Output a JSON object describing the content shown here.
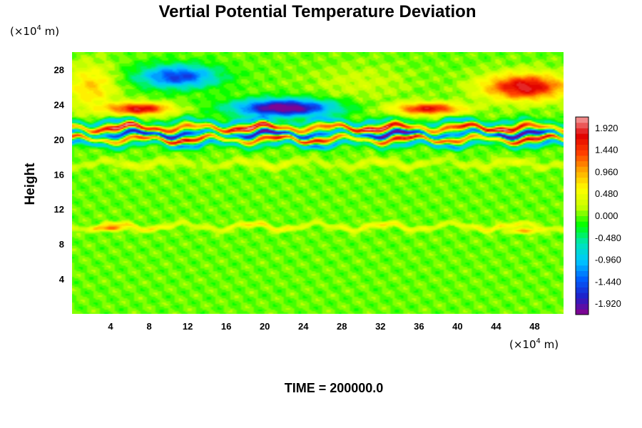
{
  "chart_data": {
    "type": "heatmap",
    "title": "Vertial Potential Temperature Deviation",
    "ylabel": "Height",
    "xlabel": "",
    "x_unit": {
      "base": "(×10",
      "exp": "4",
      "tail": " m)"
    },
    "y_unit": {
      "base": "(×10",
      "exp": "4",
      "tail": " m)"
    },
    "xlim": [
      0,
      51
    ],
    "ylim": [
      0,
      30
    ],
    "x_ticks": [
      "4",
      "8",
      "12",
      "16",
      "20",
      "24",
      "28",
      "32",
      "36",
      "40",
      "44",
      "48"
    ],
    "y_ticks": [
      "4",
      "8",
      "12",
      "16",
      "20",
      "24",
      "28"
    ],
    "colorbar": {
      "labels": [
        "1.920",
        "1.440",
        "0.960",
        "0.480",
        "0.000",
        "-0.480",
        "-0.960",
        "-1.440",
        "-1.920"
      ],
      "min": -2.16,
      "max": 2.16,
      "stops": [
        "#8b008b",
        "#2020c8",
        "#0060ff",
        "#00c8ff",
        "#00e6b4",
        "#00ff00",
        "#c8ff00",
        "#ffff00",
        "#ffaa00",
        "#ff4000",
        "#e00000",
        "#f4a0a0"
      ]
    },
    "field_features": [
      {
        "x": 11,
        "y": 27.2,
        "sx": 4.0,
        "sy": 1.3,
        "amp": -1.6
      },
      {
        "x": 22,
        "y": 23.6,
        "sx": 5.0,
        "sy": 1.0,
        "amp": -2.3
      },
      {
        "x": 7,
        "y": 23.5,
        "sx": 3.2,
        "sy": 0.7,
        "amp": 1.8
      },
      {
        "x": 37,
        "y": 23.5,
        "sx": 3.5,
        "sy": 0.7,
        "amp": 1.7
      },
      {
        "x": 47,
        "y": 26.0,
        "sx": 4.2,
        "sy": 1.5,
        "amp": 1.9
      },
      {
        "x": 30,
        "y": 26.5,
        "sx": 5.0,
        "sy": 2.0,
        "amp": 0.25
      },
      {
        "x": 2,
        "y": 26.0,
        "sx": 2.5,
        "sy": 2.5,
        "amp": 0.8
      },
      {
        "x": 4,
        "y": 9.8,
        "sx": 1.5,
        "sy": 0.3,
        "amp": 1.2
      },
      {
        "x": 47,
        "y": 9.5,
        "sx": 1.5,
        "sy": 0.3,
        "amp": 1.0
      }
    ],
    "bands": [
      {
        "y": 21.3,
        "w": 0.35,
        "amp": 2.2
      },
      {
        "y": 20.6,
        "w": 0.35,
        "amp": -2.2
      },
      {
        "y": 20.0,
        "w": 0.3,
        "amp": 2.0
      },
      {
        "y": 19.4,
        "w": 0.35,
        "amp": -1.2
      },
      {
        "y": 22.0,
        "w": 0.35,
        "amp": -1.0
      },
      {
        "y": 17.2,
        "w": 0.45,
        "amp": 0.45
      },
      {
        "y": 10.0,
        "w": 0.3,
        "amp": 0.7
      }
    ]
  },
  "footer": {
    "time_label": "TIME = 200000.0"
  }
}
